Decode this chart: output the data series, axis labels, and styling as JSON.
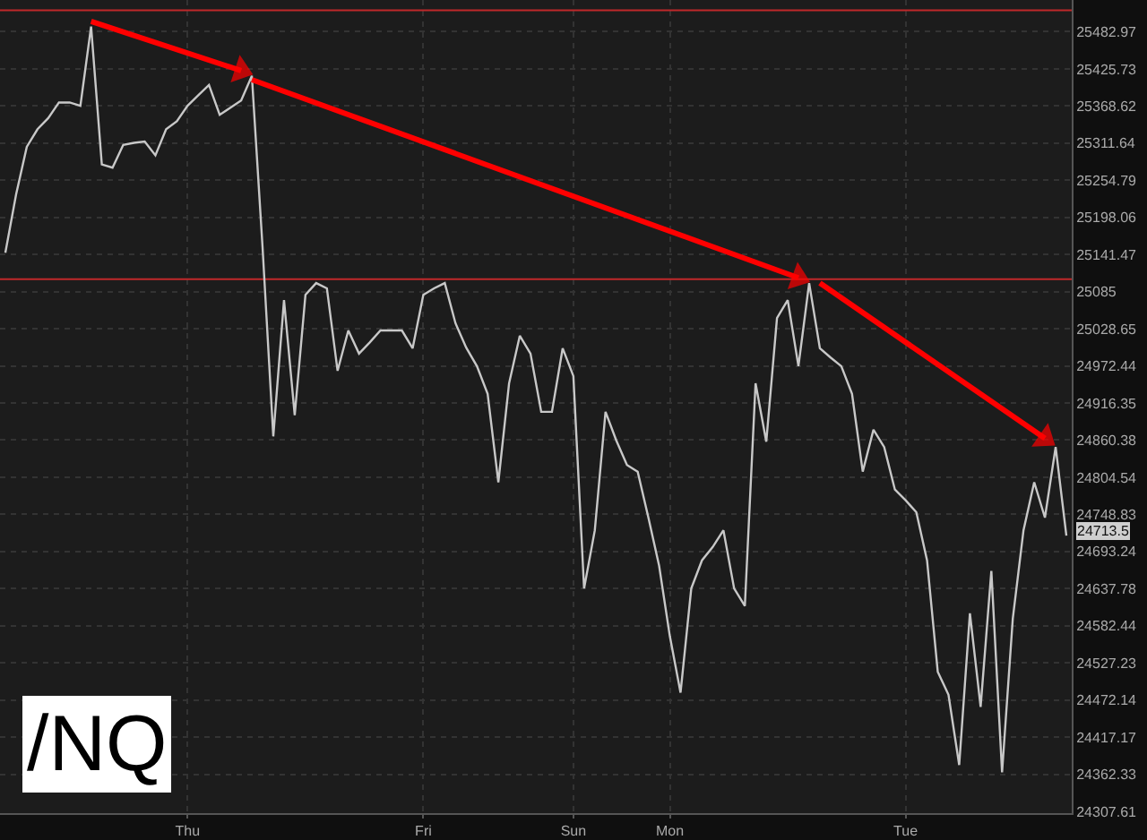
{
  "chart_data": {
    "type": "line",
    "title": "/NQ",
    "categories": [
      null,
      null,
      null,
      null,
      null,
      null,
      null,
      null,
      null,
      null,
      null,
      null,
      null,
      null,
      null,
      null,
      null,
      "Thu",
      null,
      null,
      null,
      null,
      null,
      null,
      null,
      null,
      null,
      null,
      null,
      null,
      null,
      null,
      null,
      null,
      null,
      null,
      null,
      null,
      null,
      "Fri",
      null,
      null,
      null,
      null,
      null,
      null,
      null,
      null,
      null,
      null,
      null,
      null,
      null,
      "Sun",
      null,
      null,
      null,
      null,
      null,
      null,
      null,
      null,
      "Mon",
      null,
      null,
      null,
      null,
      null,
      null,
      null,
      null,
      null,
      null,
      null,
      null,
      null,
      null,
      null,
      null,
      null,
      null,
      null,
      null,
      null,
      "Tue",
      null,
      null,
      null,
      null,
      null,
      null,
      null,
      null,
      null,
      null,
      null,
      null,
      null,
      null,
      null
    ],
    "series": [
      {
        "color": "#c8c8c8",
        "values": [
          25144,
          25233,
          25306,
          25333,
          25350,
          25374,
          25374,
          25369,
          25491,
          25279,
          25274,
          25309,
          25312,
          25314,
          25293,
          25333,
          25345,
          25369,
          25385,
          25401,
          25355,
          25366,
          25377,
          25415,
          25152,
          24866,
          25072,
          24898,
          25080,
          25098,
          25090,
          24965,
          25026,
          24991,
          25008,
          25026,
          25026,
          25026,
          24999,
          25080,
          25090,
          25098,
          25037,
          25000,
          24972,
          24930,
          24797,
          24946,
          25018,
          24991,
          24903,
          24903,
          24999,
          24957,
          24638,
          24725,
          24903,
          24860,
          24823,
          24813,
          24744,
          24672,
          24567,
          24483,
          24638,
          24680,
          24700,
          24725,
          24638,
          24612,
          24946,
          24858,
          25045,
          25072,
          24972,
          25098,
          24999,
          24985,
          24972,
          24930,
          24813,
          24876,
          24850,
          24786,
          24770,
          24752,
          24680,
          24514,
          24480,
          24376,
          24601,
          24462,
          24664,
          24365,
          24593,
          24725,
          24797,
          24744,
          24850,
          24717
        ]
      },
      {
        "type": "line",
        "color": "#ff0000",
        "marker": "triangle",
        "values": [
          null,
          null,
          null,
          null,
          null,
          null,
          null,
          null,
          25499,
          null,
          null,
          null,
          null,
          null,
          null,
          null,
          null,
          null,
          null,
          null,
          null,
          null,
          25423,
          null,
          null,
          null,
          null,
          null,
          null,
          null,
          null,
          null,
          null,
          null,
          null,
          null,
          null,
          null,
          null,
          null,
          null,
          null,
          null,
          null,
          null,
          null,
          null,
          null,
          null,
          null,
          null,
          null,
          null,
          null,
          null,
          null,
          null,
          null,
          null,
          null,
          null,
          null,
          null,
          null,
          null,
          null,
          null,
          null,
          null,
          null,
          null,
          null,
          null,
          null,
          null,
          null,
          null,
          null,
          null,
          null,
          null,
          null,
          null,
          null,
          null,
          null,
          null,
          null,
          null,
          null,
          null,
          null,
          null,
          null,
          null,
          null,
          null,
          null,
          null,
          null
        ]
      },
      {
        "type": "line",
        "color": "#ff0000",
        "marker": "triangle",
        "values": [
          null,
          null,
          null,
          null,
          null,
          null,
          null,
          null,
          null,
          null,
          null,
          null,
          null,
          null,
          null,
          null,
          null,
          null,
          null,
          null,
          null,
          null,
          null,
          25409,
          null,
          null,
          null,
          null,
          null,
          null,
          null,
          null,
          null,
          null,
          null,
          null,
          null,
          null,
          null,
          null,
          null,
          null,
          null,
          null,
          null,
          null,
          null,
          null,
          null,
          null,
          null,
          null,
          null,
          null,
          null,
          null,
          null,
          null,
          null,
          null,
          null,
          null,
          null,
          null,
          null,
          null,
          null,
          null,
          null,
          null,
          null,
          null,
          null,
          null,
          25106,
          null,
          null,
          null,
          null,
          null,
          null,
          null,
          null,
          null,
          null,
          null,
          null,
          null,
          null,
          null,
          null,
          null,
          null,
          null,
          null,
          null,
          null,
          null,
          null,
          null
        ]
      },
      {
        "type": "line",
        "color": "#ff0000",
        "marker": "triangle",
        "values": [
          null,
          null,
          null,
          null,
          null,
          null,
          null,
          null,
          null,
          null,
          null,
          null,
          null,
          null,
          null,
          null,
          null,
          null,
          null,
          null,
          null,
          null,
          null,
          null,
          null,
          null,
          null,
          null,
          null,
          null,
          null,
          null,
          null,
          null,
          null,
          null,
          null,
          null,
          null,
          null,
          null,
          null,
          null,
          null,
          null,
          null,
          null,
          null,
          null,
          null,
          null,
          null,
          null,
          null,
          null,
          null,
          null,
          null,
          null,
          null,
          null,
          null,
          null,
          null,
          null,
          null,
          null,
          null,
          null,
          null,
          null,
          null,
          null,
          null,
          null,
          null,
          25098,
          null,
          null,
          null,
          null,
          null,
          null,
          null,
          null,
          null,
          null,
          null,
          null,
          null,
          null,
          null,
          null,
          null,
          null,
          null,
          null,
          24863,
          null,
          null
        ]
      }
    ],
    "log": true,
    "ylim": [
      24305,
      25532
    ],
    "yticks": [
      25482.97,
      25425.73,
      25368.62,
      25311.64,
      25254.79,
      25198.06,
      25141.47,
      25085,
      25028.65,
      24972.44,
      24916.35,
      24860.38,
      24804.54,
      24748.83,
      24693.24,
      24637.78,
      24582.44,
      24527.23,
      24472.14,
      24417.17,
      24362.33,
      24307.61
    ],
    "ref_lines": [
      {
        "axis": "y",
        "value": 25516,
        "color": "#c0282a"
      },
      {
        "axis": "y",
        "value": 25104,
        "color": "#c0282a"
      }
    ],
    "annotations": [
      "24713.5"
    ],
    "grid": true,
    "marker": "none",
    "line_style": "solid"
  }
}
